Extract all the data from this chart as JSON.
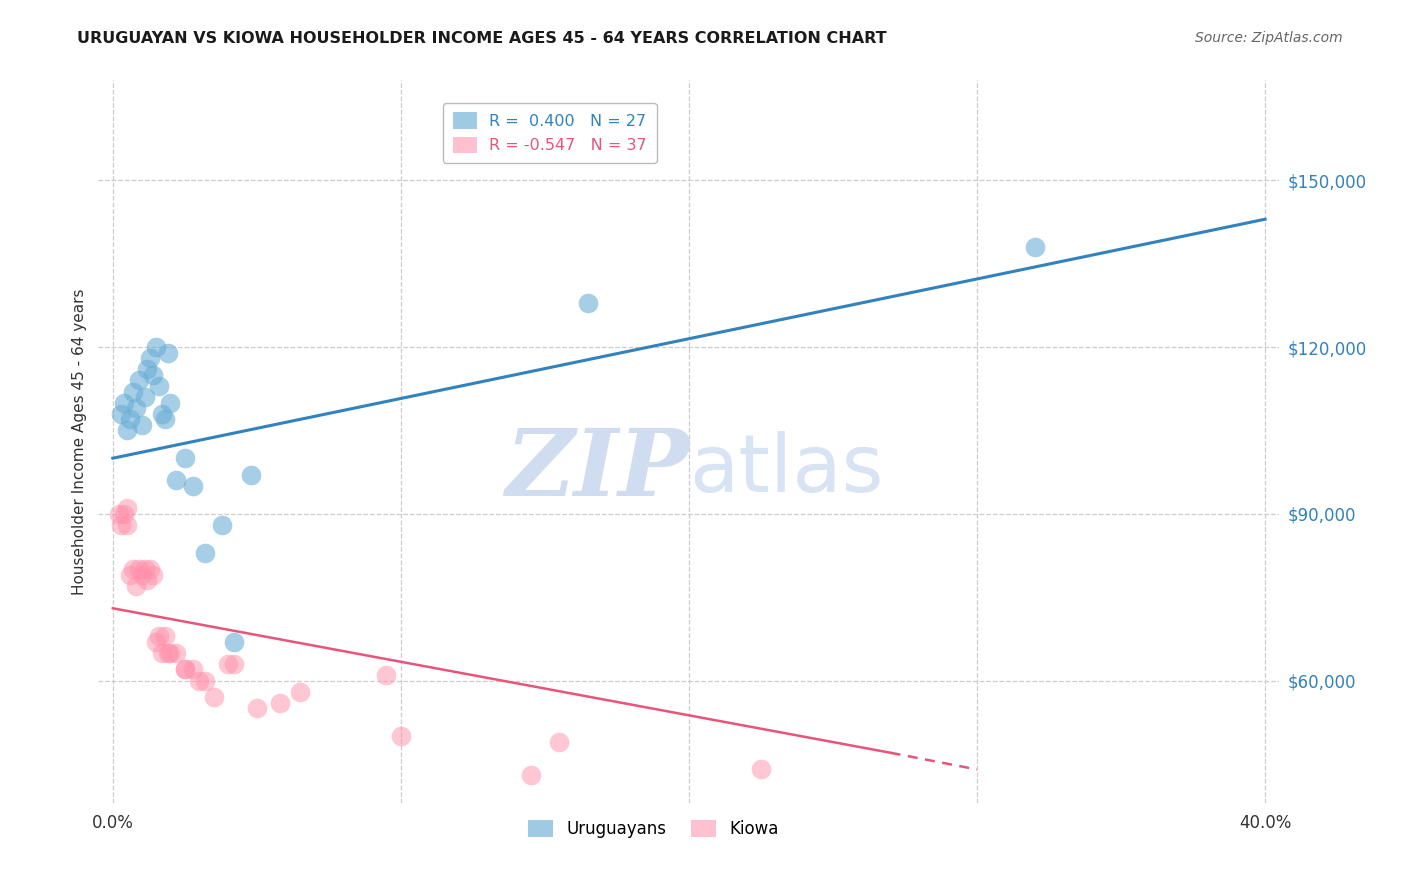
{
  "title": "URUGUAYAN VS KIOWA HOUSEHOLDER INCOME AGES 45 - 64 YEARS CORRELATION CHART",
  "source": "Source: ZipAtlas.com",
  "ylabel": "Householder Income Ages 45 - 64 years",
  "xlim": [
    -0.005,
    0.405
  ],
  "ylim": [
    38000,
    168000
  ],
  "xticks": [
    0.0,
    0.1,
    0.2,
    0.3,
    0.4
  ],
  "xticklabels": [
    "0.0%",
    "",
    "",
    "",
    "40.0%"
  ],
  "yticks": [
    60000,
    90000,
    120000,
    150000
  ],
  "yticklabels": [
    "$60,000",
    "$90,000",
    "$120,000",
    "$150,000"
  ],
  "blue_R": 0.4,
  "blue_N": 27,
  "pink_R": -0.547,
  "pink_N": 37,
  "blue_color": "#6BAED6",
  "pink_color": "#FF8FAB",
  "blue_line_color": "#3182BD",
  "pink_line_color": "#E8547A",
  "background_color": "#FFFFFF",
  "grid_color": "#CCCCCC",
  "watermark_zip": "ZIP",
  "watermark_atlas": "atlas",
  "blue_scatter_x": [
    0.003,
    0.004,
    0.005,
    0.006,
    0.007,
    0.008,
    0.009,
    0.01,
    0.011,
    0.012,
    0.013,
    0.014,
    0.015,
    0.016,
    0.017,
    0.018,
    0.019,
    0.02,
    0.022,
    0.025,
    0.028,
    0.032,
    0.038,
    0.042,
    0.048,
    0.165,
    0.32
  ],
  "blue_scatter_y": [
    108000,
    110000,
    105000,
    107000,
    112000,
    109000,
    114000,
    106000,
    111000,
    116000,
    118000,
    115000,
    120000,
    113000,
    108000,
    107000,
    119000,
    110000,
    96000,
    100000,
    95000,
    83000,
    88000,
    67000,
    97000,
    128000,
    138000
  ],
  "pink_scatter_x": [
    0.002,
    0.003,
    0.004,
    0.005,
    0.005,
    0.006,
    0.007,
    0.008,
    0.009,
    0.01,
    0.011,
    0.012,
    0.013,
    0.014,
    0.015,
    0.016,
    0.017,
    0.018,
    0.019,
    0.02,
    0.022,
    0.025,
    0.025,
    0.028,
    0.03,
    0.032,
    0.035,
    0.04,
    0.042,
    0.05,
    0.058,
    0.065,
    0.095,
    0.1,
    0.145,
    0.155,
    0.225
  ],
  "pink_scatter_y": [
    90000,
    88000,
    90000,
    91000,
    88000,
    79000,
    80000,
    77000,
    80000,
    79000,
    80000,
    78000,
    80000,
    79000,
    67000,
    68000,
    65000,
    68000,
    65000,
    65000,
    65000,
    62000,
    62000,
    62000,
    60000,
    60000,
    57000,
    63000,
    63000,
    55000,
    56000,
    58000,
    61000,
    50000,
    43000,
    49000,
    44000
  ],
  "blue_line_x0": 0.0,
  "blue_line_y0": 100000,
  "blue_line_x1": 0.4,
  "blue_line_y1": 143000,
  "pink_line_x0": 0.0,
  "pink_line_y0": 73000,
  "pink_line_x1": 0.3,
  "pink_line_y1": 44000,
  "pink_line_solid_x1": 0.27,
  "pink_line_solid_y1": 47000
}
